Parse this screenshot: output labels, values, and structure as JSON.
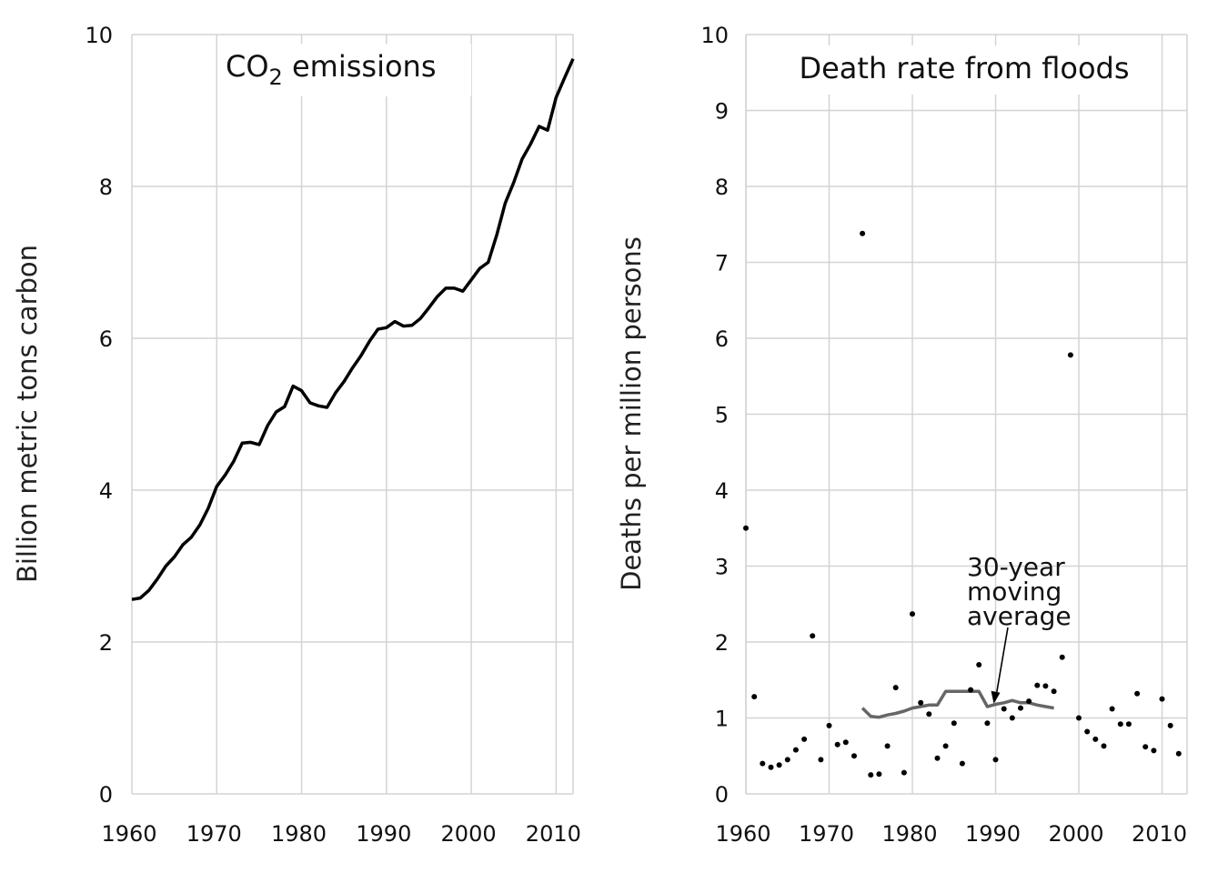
{
  "chart_data": [
    {
      "type": "line",
      "title_main": "CO",
      "title_sub": "2",
      "title_rest": " emissions",
      "xlabel": "",
      "ylabel": "Billion metric tons carbon",
      "xlim": [
        1960,
        2012
      ],
      "ylim": [
        0,
        10
      ],
      "x_ticks": [
        1960,
        1970,
        1980,
        1990,
        2000,
        2010
      ],
      "y_ticks": [
        0,
        2,
        4,
        6,
        8,
        10
      ],
      "grid": true,
      "color": "#000000",
      "series": [
        {
          "x": [
            1960,
            1961,
            1962,
            1963,
            1964,
            1965,
            1966,
            1967,
            1968,
            1969,
            1970,
            1971,
            1972,
            1973,
            1974,
            1975,
            1976,
            1977,
            1978,
            1979,
            1980,
            1981,
            1982,
            1983,
            1984,
            1985,
            1986,
            1987,
            1988,
            1989,
            1990,
            1991,
            1992,
            1993,
            1994,
            1995,
            1996,
            1997,
            1998,
            1999,
            2000,
            2001,
            2002,
            2003,
            2004,
            2005,
            2006,
            2007,
            2008,
            2009,
            2010,
            2011,
            2012
          ],
          "y": [
            2.56,
            2.58,
            2.68,
            2.83,
            3.0,
            3.12,
            3.28,
            3.38,
            3.54,
            3.76,
            4.05,
            4.2,
            4.38,
            4.62,
            4.63,
            4.6,
            4.85,
            5.03,
            5.1,
            5.37,
            5.31,
            5.15,
            5.11,
            5.09,
            5.28,
            5.43,
            5.61,
            5.77,
            5.96,
            6.12,
            6.14,
            6.22,
            6.16,
            6.17,
            6.26,
            6.4,
            6.55,
            6.66,
            6.66,
            6.62,
            6.77,
            6.92,
            7.0,
            7.36,
            7.78,
            8.05,
            8.36,
            8.56,
            8.79,
            8.74,
            9.17,
            9.43,
            9.68
          ]
        }
      ]
    },
    {
      "type": "scatter",
      "title": "Death rate from floods",
      "xlabel": "",
      "ylabel": "Deaths per million persons",
      "xlim": [
        1960,
        2013
      ],
      "ylim": [
        0,
        10
      ],
      "x_ticks": [
        1960,
        1970,
        1980,
        1990,
        2000,
        2010
      ],
      "y_ticks": [
        0,
        1,
        2,
        3,
        4,
        5,
        6,
        7,
        8,
        9,
        10
      ],
      "grid": true,
      "annotation": {
        "lines": [
          "30-year",
          "moving",
          "average"
        ],
        "points_to": [
          1990,
          1.2
        ]
      },
      "series": [
        {
          "name": "",
          "kind": "points",
          "color": "#000000",
          "x": [
            1960,
            1961,
            1962,
            1963,
            1964,
            1965,
            1966,
            1967,
            1968,
            1969,
            1970,
            1971,
            1972,
            1973,
            1974,
            1975,
            1976,
            1977,
            1978,
            1979,
            1980,
            1981,
            1982,
            1983,
            1984,
            1985,
            1986,
            1987,
            1988,
            1989,
            1990,
            1991,
            1992,
            1993,
            1994,
            1995,
            1996,
            1997,
            1998,
            1999,
            2000,
            2001,
            2002,
            2003,
            2004,
            2005,
            2006,
            2007,
            2008,
            2009,
            2010,
            2011,
            2012
          ],
          "y": [
            3.5,
            1.28,
            0.4,
            0.35,
            0.38,
            0.45,
            0.58,
            0.72,
            2.08,
            0.45,
            0.9,
            0.65,
            0.68,
            0.5,
            7.38,
            0.25,
            0.26,
            0.63,
            1.4,
            0.28,
            2.37,
            1.2,
            1.05,
            0.47,
            0.63,
            0.93,
            0.4,
            1.37,
            1.7,
            0.93,
            0.45,
            1.12,
            1.0,
            1.13,
            1.22,
            1.43,
            1.42,
            1.35,
            1.8,
            5.78,
            1.0,
            0.82,
            0.72,
            0.63,
            1.12,
            0.92,
            0.92,
            1.32,
            0.62,
            0.57,
            1.25,
            0.9,
            0.53
          ]
        },
        {
          "name": "30-year moving average",
          "kind": "line",
          "color": "#666666",
          "x": [
            1974,
            1975,
            1976,
            1977,
            1978,
            1979,
            1980,
            1981,
            1982,
            1983,
            1984,
            1985,
            1986,
            1987,
            1988,
            1989,
            1990,
            1991,
            1992,
            1993,
            1994,
            1995,
            1996,
            1997
          ],
          "y": [
            1.13,
            1.02,
            1.01,
            1.04,
            1.06,
            1.09,
            1.13,
            1.15,
            1.17,
            1.17,
            1.35,
            1.35,
            1.35,
            1.35,
            1.35,
            1.15,
            1.18,
            1.2,
            1.23,
            1.2,
            1.2,
            1.17,
            1.15,
            1.13
          ]
        }
      ]
    }
  ]
}
